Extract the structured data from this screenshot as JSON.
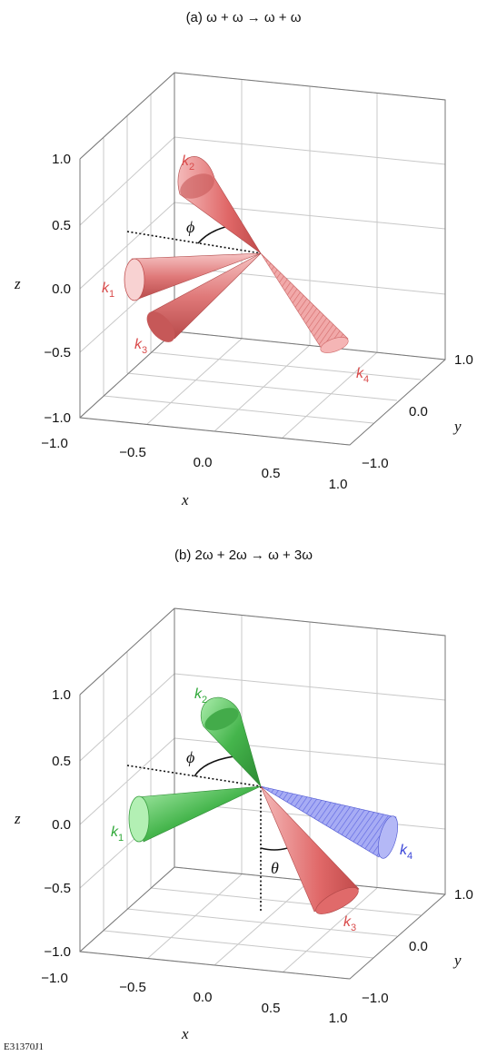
{
  "panels": [
    {
      "id": "a",
      "title": "(a) ω + ω → ω + ω",
      "axes": {
        "x": {
          "label": "x",
          "ticks": [
            "−1.0",
            "−0.5",
            "0.0",
            "0.5",
            "1.0"
          ]
        },
        "y": {
          "label": "y",
          "ticks": [
            "−1.0",
            "0.0",
            "1.0"
          ]
        },
        "z": {
          "label": "z",
          "ticks": [
            "−1.0",
            "−0.5",
            "0.0",
            "0.5",
            "1.0"
          ]
        }
      },
      "cones": [
        {
          "label": "k",
          "sub": "2",
          "color": "#d9605f"
        },
        {
          "label": "k",
          "sub": "1",
          "color": "#e87f80"
        },
        {
          "label": "k",
          "sub": "3",
          "color": "#d9605f"
        },
        {
          "label": "k",
          "sub": "4",
          "color": "#e8898a"
        }
      ],
      "angles": [
        "ϕ"
      ]
    },
    {
      "id": "b",
      "title": "(b) 2ω + 2ω → ω + 3ω",
      "axes": {
        "x": {
          "label": "x",
          "ticks": [
            "−1.0",
            "−0.5",
            "0.0",
            "0.5",
            "1.0"
          ]
        },
        "y": {
          "label": "y",
          "ticks": [
            "−1.0",
            "0.0",
            "1.0"
          ]
        },
        "z": {
          "label": "z",
          "ticks": [
            "−1.0",
            "−0.5",
            "0.0",
            "0.5",
            "1.0"
          ]
        }
      },
      "cones": [
        {
          "label": "k",
          "sub": "2",
          "color": "#41b24a"
        },
        {
          "label": "k",
          "sub": "1",
          "color": "#41b24a"
        },
        {
          "label": "k",
          "sub": "3",
          "color": "#e05858"
        },
        {
          "label": "k",
          "sub": "4",
          "color": "#3b46d8"
        }
      ],
      "angles": [
        "ϕ",
        "θ"
      ]
    }
  ],
  "figure_code": "E31370J1"
}
